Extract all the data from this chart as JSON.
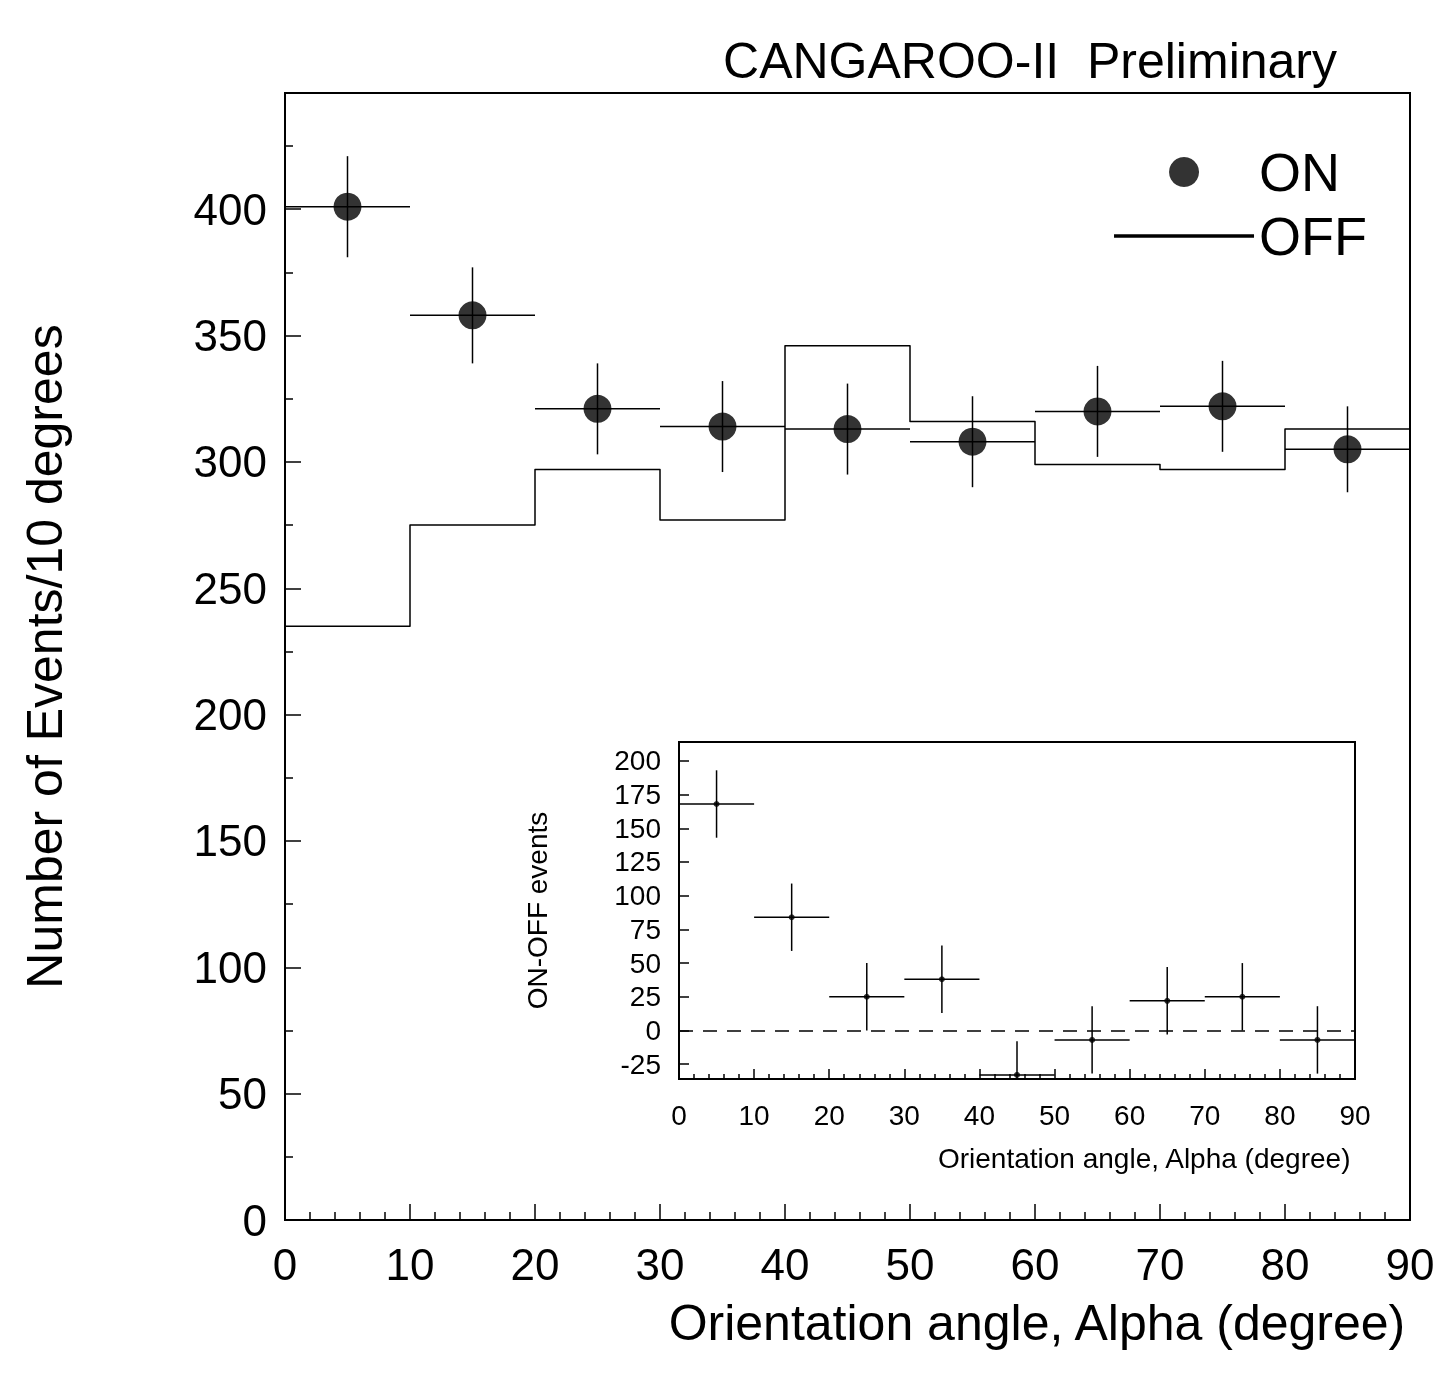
{
  "chart_data": [
    {
      "type": "scatter",
      "title": "CANGAROO-II  Preliminary",
      "xlabel": "Orientation angle, Alpha (degree)",
      "ylabel": "Number of Events/10 degrees",
      "xlim": [
        0,
        90
      ],
      "xticks": [
        0,
        10,
        20,
        30,
        40,
        50,
        60,
        70,
        80,
        90
      ],
      "ylim": [
        0,
        446
      ],
      "yticks": [
        0,
        50,
        100,
        150,
        200,
        250,
        300,
        350,
        400
      ],
      "legend": "top right",
      "series": [
        {
          "name": "ON",
          "color": "#000000",
          "marker": "circle",
          "x": [
            5,
            15,
            25,
            35,
            45,
            55,
            65,
            75,
            85
          ],
          "values": [
            401,
            358,
            321,
            314,
            313,
            308,
            320,
            322,
            305
          ],
          "errors": [
            20,
            19,
            18,
            18,
            18,
            18,
            18,
            18,
            17
          ],
          "xerrors": [
            5,
            5,
            5,
            5,
            5,
            5,
            5,
            5,
            5
          ]
        },
        {
          "name": "OFF",
          "type": "histogram",
          "color": "#000000",
          "bins": [
            0,
            10,
            20,
            30,
            40,
            50,
            60,
            70,
            80,
            90
          ],
          "values": [
            235,
            275,
            297,
            277,
            346,
            316,
            299,
            297,
            313
          ]
        }
      ]
    },
    {
      "type": "scatter",
      "xlabel": "Orientation angle, Alpha (degree)",
      "ylabel": "ON-OFF events",
      "xlim": [
        0,
        90
      ],
      "xticks": [
        0,
        10,
        20,
        30,
        40,
        50,
        60,
        70,
        80,
        90
      ],
      "ylim": [
        -36,
        214
      ],
      "yticks": [
        -25,
        0,
        25,
        50,
        75,
        100,
        125,
        150,
        175,
        200
      ],
      "marker": "none",
      "color": "#000000",
      "x": [
        5,
        15,
        25,
        35,
        45,
        55,
        65,
        75,
        85
      ],
      "values": [
        168,
        84,
        25,
        38,
        -33,
        -7,
        22,
        25,
        -7
      ],
      "errors": [
        25,
        25,
        25,
        25,
        [
          -36,
          -8
        ],
        25,
        25,
        25,
        25
      ],
      "xerrors": [
        5,
        5,
        5,
        5,
        5,
        5,
        5,
        5,
        5
      ],
      "ref_lines": [
        {
          "axis": "y",
          "value": 0,
          "line_style": "dashed"
        }
      ]
    }
  ]
}
